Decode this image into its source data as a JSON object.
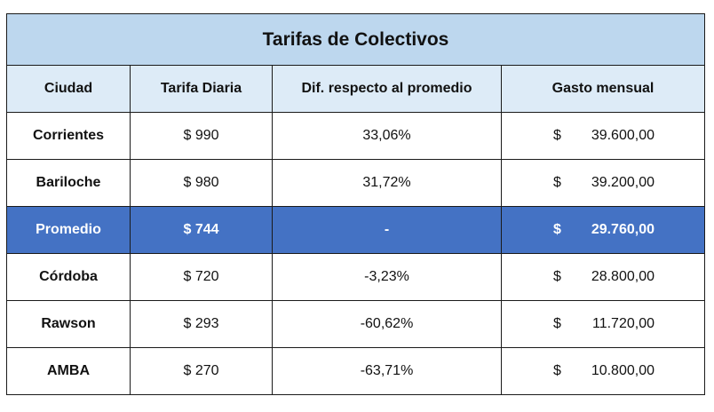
{
  "table": {
    "title": "Tarifas de Colectivos",
    "headers": [
      "Ciudad",
      "Tarifa Diaria",
      "Dif. respecto al promedio",
      "Gasto mensual"
    ],
    "rows": [
      {
        "city": "Corrientes",
        "daily": "$ 990",
        "diff": "33,06%",
        "currency": "$",
        "monthly": "39.600,00",
        "highlight": false
      },
      {
        "city": "Bariloche",
        "daily": "$ 980",
        "diff": "31,72%",
        "currency": "$",
        "monthly": "39.200,00",
        "highlight": false
      },
      {
        "city": "Promedio",
        "daily": "$ 744",
        "diff": "-",
        "currency": "$",
        "monthly": "29.760,00",
        "highlight": true
      },
      {
        "city": "Córdoba",
        "daily": "$ 720",
        "diff": "-3,23%",
        "currency": "$",
        "monthly": "28.800,00",
        "highlight": false
      },
      {
        "city": "Rawson",
        "daily": "$ 293",
        "diff": "-60,62%",
        "currency": "$",
        "monthly": "11.720,00",
        "highlight": false
      },
      {
        "city": "AMBA",
        "daily": "$ 270",
        "diff": "-63,71%",
        "currency": "$",
        "monthly": "10.800,00",
        "highlight": false
      }
    ]
  },
  "colors": {
    "title_bg": "#bdd7ee",
    "header_bg": "#ddebf7",
    "highlight_bg": "#4472c4",
    "highlight_text": "#ffffff",
    "border": "#1a1a1a"
  }
}
